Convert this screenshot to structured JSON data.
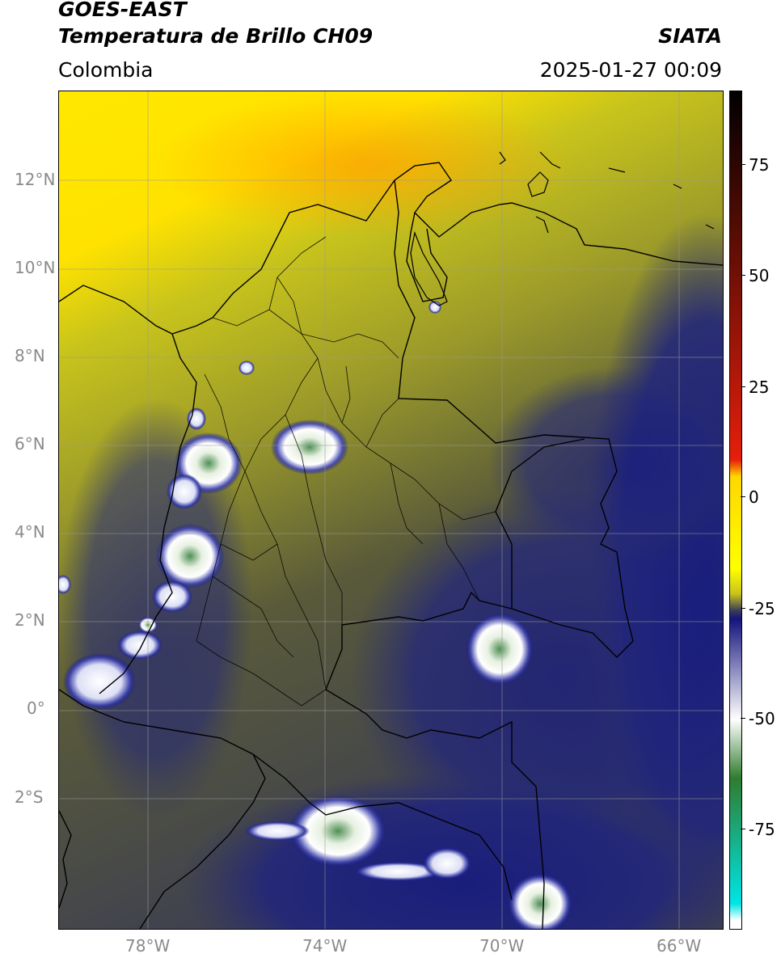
{
  "header": {
    "satellite": "GOES-EAST",
    "product": "Temperatura de Brillo CH09",
    "region": "Colombia",
    "agency": "SIATA",
    "timestamp": "2025-01-27 00:09"
  },
  "map": {
    "lat_labels": [
      "12°N",
      "10°N",
      "8°N",
      "6°N",
      "4°N",
      "2°N",
      "0°",
      "2°S"
    ],
    "lon_labels": [
      "78°W",
      "74°W",
      "70°W",
      "66°W"
    ]
  },
  "colorbar": {
    "labels": [
      "75",
      "50",
      "25",
      "0",
      "-25",
      "-50",
      "-75"
    ],
    "stops": [
      "#000000",
      "#e41f0b",
      "#ffd700",
      "#ffff00",
      "#c8c21c",
      "#3a3d57",
      "#14147e",
      "#ffffff",
      "#2f7c2f",
      "#00e5e5",
      "#ffffff"
    ]
  }
}
